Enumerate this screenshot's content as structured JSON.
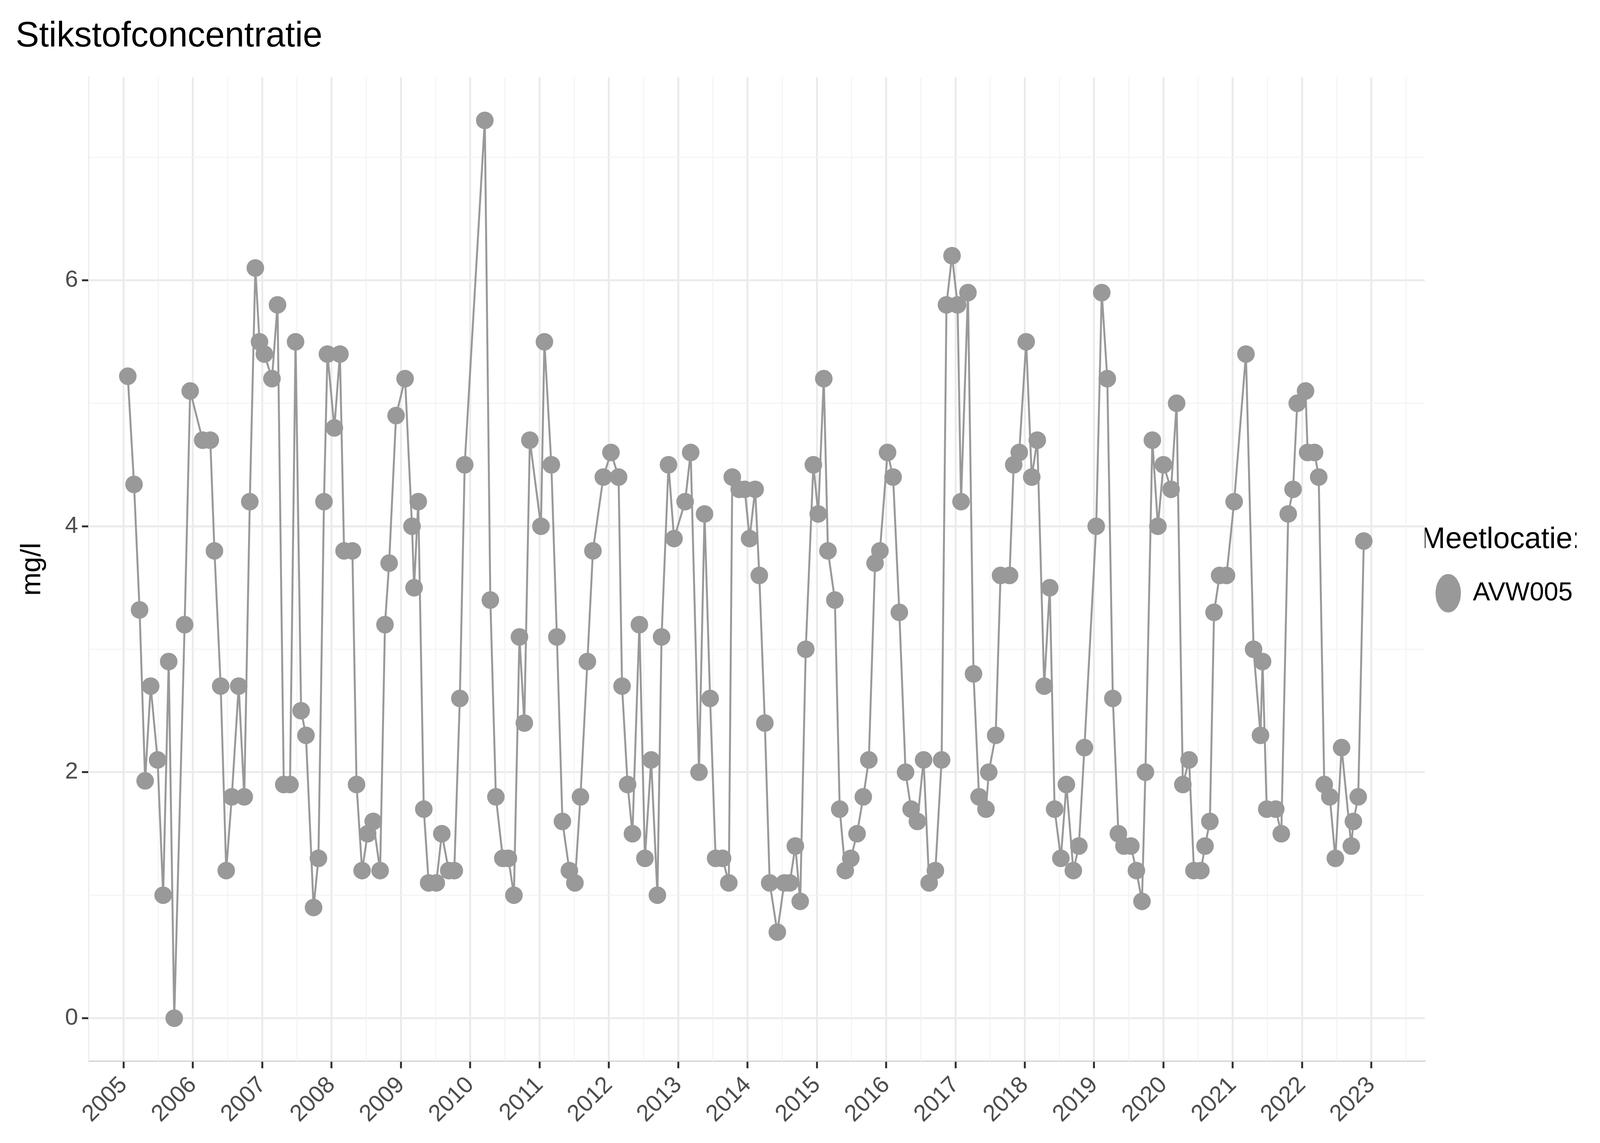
{
  "chart_data": {
    "type": "line",
    "title": "Stikstofconcentratie",
    "y_label": "mg/l",
    "legend_title": "Meetlocatie:",
    "legend": "right",
    "grid": true,
    "x": [
      2005.06,
      2005.15,
      2005.23,
      2005.31,
      2005.39,
      2005.49,
      2005.57,
      2005.65,
      2005.73,
      2005.88,
      2005.96,
      2006.14,
      2006.25,
      2006.31,
      2006.4,
      2006.48,
      2006.56,
      2006.66,
      2006.74,
      2006.82,
      2006.9,
      2006.96,
      2007.03,
      2007.14,
      2007.22,
      2007.31,
      2007.4,
      2007.48,
      2007.56,
      2007.63,
      2007.74,
      2007.81,
      2007.89,
      2007.94,
      2008.04,
      2008.12,
      2008.18,
      2008.3,
      2008.36,
      2008.44,
      2008.52,
      2008.6,
      2008.7,
      2008.77,
      2008.83,
      2008.93,
      2009.06,
      2009.16,
      2009.19,
      2009.25,
      2009.33,
      2009.4,
      2009.51,
      2009.59,
      2009.69,
      2009.77,
      2009.85,
      2009.92,
      2010.21,
      2010.29,
      2010.37,
      2010.47,
      2010.55,
      2010.63,
      2010.71,
      2010.78,
      2010.86,
      2011.02,
      2011.07,
      2011.17,
      2011.25,
      2011.33,
      2011.43,
      2011.51,
      2011.59,
      2011.69,
      2011.77,
      2011.92,
      2012.03,
      2012.14,
      2012.19,
      2012.27,
      2012.34,
      2012.44,
      2012.52,
      2012.61,
      2012.7,
      2012.76,
      2012.86,
      2012.94,
      2013.1,
      2013.18,
      2013.3,
      2013.38,
      2013.46,
      2013.54,
      2013.64,
      2013.73,
      2013.78,
      2013.88,
      2013.96,
      2014.03,
      2014.11,
      2014.17,
      2014.25,
      2014.32,
      2014.43,
      2014.53,
      2014.61,
      2014.69,
      2014.76,
      2014.84,
      2014.95,
      2015.02,
      2015.1,
      2015.16,
      2015.26,
      2015.33,
      2015.41,
      2015.49,
      2015.58,
      2015.67,
      2015.75,
      2015.84,
      2015.91,
      2016.02,
      2016.1,
      2016.19,
      2016.28,
      2016.36,
      2016.45,
      2016.54,
      2016.62,
      2016.71,
      2016.8,
      2016.87,
      2016.95,
      2017.03,
      2017.08,
      2017.18,
      2017.26,
      2017.34,
      2017.44,
      2017.48,
      2017.58,
      2017.65,
      2017.78,
      2017.84,
      2017.92,
      2018.02,
      2018.1,
      2018.18,
      2018.28,
      2018.36,
      2018.43,
      2018.52,
      2018.6,
      2018.7,
      2018.78,
      2018.86,
      2019.03,
      2019.11,
      2019.19,
      2019.27,
      2019.35,
      2019.43,
      2019.53,
      2019.61,
      2019.69,
      2019.74,
      2019.84,
      2019.92,
      2020.0,
      2020.11,
      2020.19,
      2020.28,
      2020.37,
      2020.44,
      2020.54,
      2020.6,
      2020.67,
      2020.73,
      2020.81,
      2020.91,
      2021.02,
      2021.19,
      2021.3,
      2021.4,
      2021.43,
      2021.49,
      2021.62,
      2021.7,
      2021.8,
      2021.87,
      2021.93,
      2022.05,
      2022.08,
      2022.18,
      2022.24,
      2022.32,
      2022.4,
      2022.48,
      2022.57,
      2022.71,
      2022.74,
      2022.81,
      2022.89
    ],
    "series": [
      {
        "name": "AVW005",
        "color": "#999999",
        "marker": "circle",
        "line_style": "solid",
        "values": [
          5.22,
          4.34,
          3.32,
          1.93,
          2.7,
          2.1,
          1.0,
          2.9,
          0.0,
          3.2,
          5.1,
          4.7,
          4.7,
          3.8,
          2.7,
          1.2,
          1.8,
          2.7,
          1.8,
          4.2,
          6.1,
          5.5,
          5.4,
          5.2,
          5.8,
          1.9,
          1.9,
          5.5,
          2.5,
          2.3,
          0.9,
          1.3,
          4.2,
          5.4,
          4.8,
          5.4,
          3.8,
          3.8,
          1.9,
          1.2,
          1.5,
          1.6,
          1.2,
          3.2,
          3.7,
          4.9,
          5.2,
          4.0,
          3.5,
          4.2,
          1.7,
          1.1,
          1.1,
          1.5,
          1.2,
          1.2,
          2.6,
          4.5,
          7.3,
          3.4,
          1.8,
          1.3,
          1.3,
          1.0,
          3.1,
          2.4,
          4.7,
          4.0,
          5.5,
          4.5,
          3.1,
          1.6,
          1.2,
          1.1,
          1.8,
          2.9,
          3.8,
          4.4,
          4.6,
          4.4,
          2.7,
          1.9,
          1.5,
          3.2,
          1.3,
          2.1,
          1.0,
          3.1,
          4.5,
          3.9,
          4.2,
          4.6,
          2.0,
          4.1,
          2.6,
          1.3,
          1.3,
          1.1,
          4.4,
          4.3,
          4.3,
          3.9,
          4.3,
          3.6,
          2.4,
          1.1,
          0.7,
          1.1,
          1.1,
          1.4,
          0.95,
          3.0,
          4.5,
          4.1,
          5.2,
          3.8,
          3.4,
          1.7,
          1.2,
          1.3,
          1.5,
          1.8,
          2.1,
          3.7,
          3.8,
          4.6,
          4.4,
          3.3,
          2.0,
          1.7,
          1.6,
          2.1,
          1.1,
          1.2,
          2.1,
          5.8,
          6.2,
          5.8,
          4.2,
          5.9,
          2.8,
          1.8,
          1.7,
          2.0,
          2.3,
          3.6,
          3.6,
          4.5,
          4.6,
          5.5,
          4.4,
          4.7,
          2.7,
          3.5,
          1.7,
          1.3,
          1.9,
          1.2,
          1.4,
          2.2,
          4.0,
          5.9,
          5.2,
          2.6,
          1.5,
          1.4,
          1.4,
          1.2,
          0.95,
          2.0,
          4.7,
          4.0,
          4.5,
          4.3,
          5.0,
          1.9,
          2.1,
          1.2,
          1.2,
          1.4,
          1.6,
          3.3,
          3.6,
          3.6,
          4.2,
          5.4,
          3.0,
          2.3,
          2.9,
          1.7,
          1.7,
          1.5,
          4.1,
          4.3,
          5.0,
          5.1,
          4.6,
          4.6,
          4.4,
          1.9,
          1.8,
          1.3,
          2.2,
          1.4,
          1.6,
          1.8,
          3.88
        ]
      }
    ],
    "xlim": [
      2004.5,
      2023.77
    ],
    "xticks": [
      2005,
      2006,
      2007,
      2008,
      2009,
      2010,
      2011,
      2012,
      2013,
      2014,
      2015,
      2016,
      2017,
      2018,
      2019,
      2020,
      2021,
      2022,
      2023
    ],
    "ylim": [
      -0.35,
      7.65
    ],
    "yticks": [
      0,
      2,
      4,
      6
    ]
  }
}
